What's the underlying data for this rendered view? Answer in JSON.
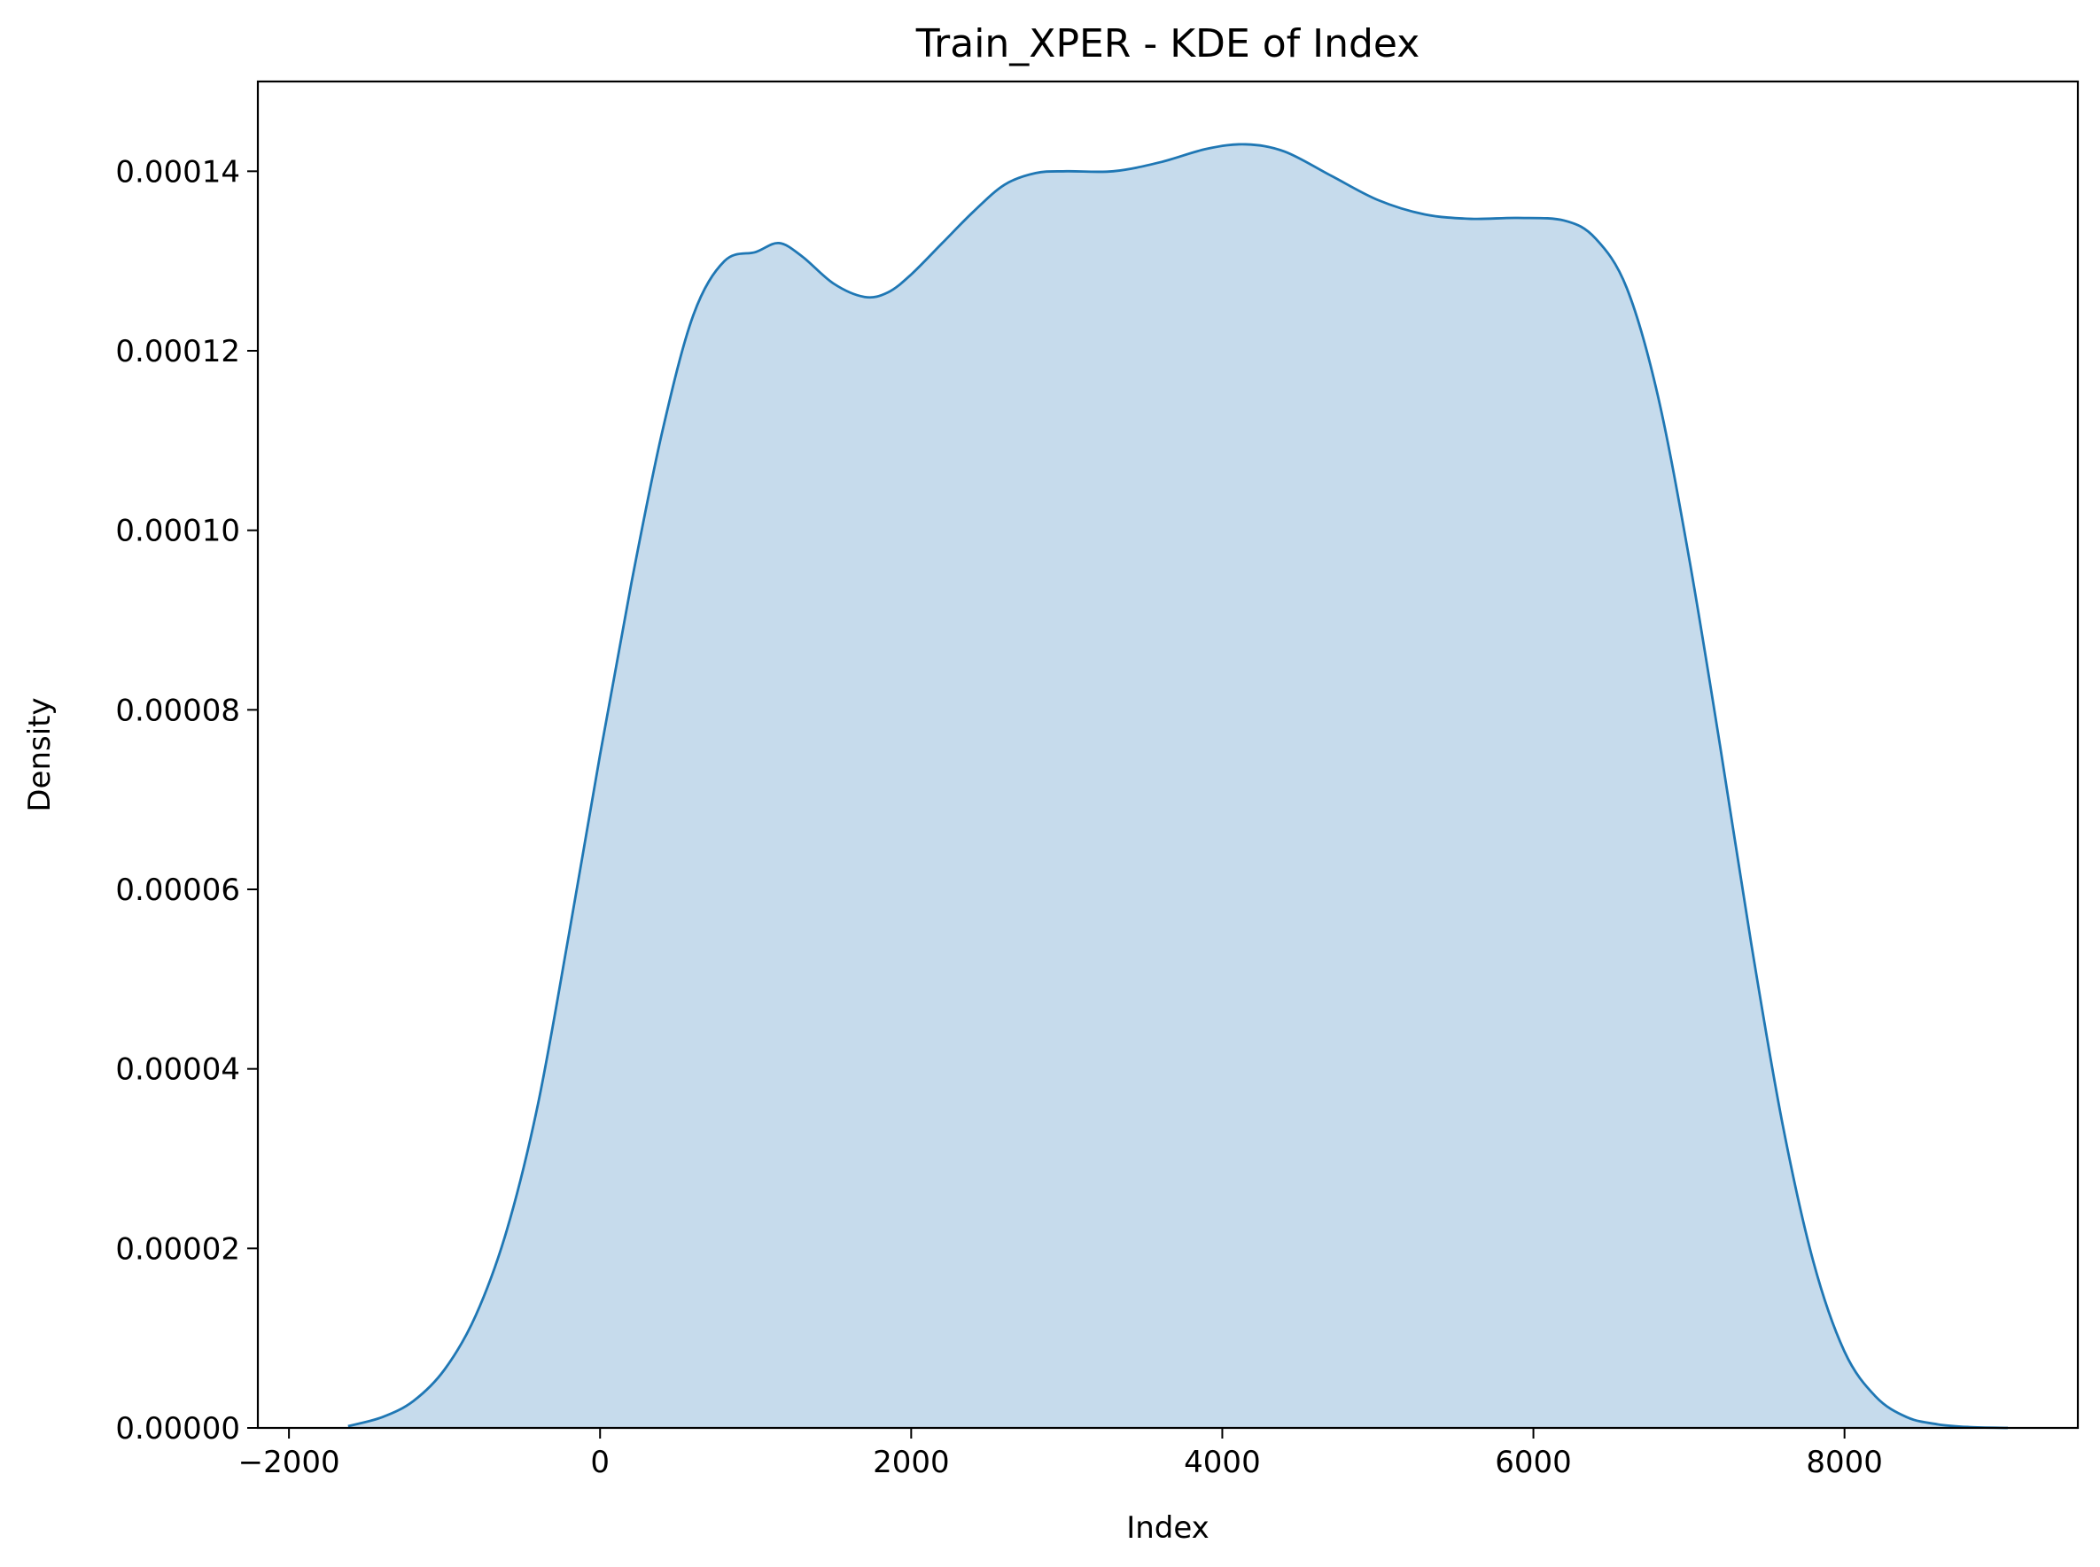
{
  "chart_data": {
    "type": "area",
    "title": "Train_XPER - KDE of Index",
    "xlabel": "Index",
    "ylabel": "Density",
    "xlim": [
      -2200,
      9500
    ],
    "ylim": [
      0,
      0.00015
    ],
    "x_ticks": [
      -2000,
      0,
      2000,
      4000,
      6000,
      8000
    ],
    "x_tick_labels": [
      "−2000",
      "0",
      "2000",
      "4000",
      "6000",
      "8000"
    ],
    "y_ticks": [
      0,
      2e-05,
      4e-05,
      6e-05,
      8e-05,
      0.0001,
      0.00012,
      0.00014
    ],
    "y_tick_labels": [
      "0.00000",
      "0.00002",
      "0.00004",
      "0.00006",
      "0.00008",
      "0.00010",
      "0.00012",
      "0.00014"
    ],
    "grid": false,
    "legend": "none",
    "colors": {
      "line": "#1f77b4",
      "fill": "#c6dbec"
    },
    "series": [
      {
        "x": [
          -1620,
          -1400,
          -1200,
          -1000,
          -800,
          -600,
          -400,
          -200,
          0,
          200,
          400,
          600,
          800,
          1000,
          1150,
          1300,
          1500,
          1700,
          1850,
          2000,
          2200,
          2400,
          2600,
          2800,
          3000,
          3300,
          3600,
          3900,
          4150,
          4400,
          4700,
          5000,
          5300,
          5600,
          5900,
          6200,
          6400,
          6600,
          6800,
          7000,
          7200,
          7400,
          7600,
          7800,
          8000,
          8200,
          8400,
          8600,
          8800,
          9050
        ],
        "y": [
          2e-07,
          1.2e-06,
          3e-06,
          6.5e-06,
          1.25e-05,
          2.2e-05,
          3.6e-05,
          5.5e-05,
          7.5e-05,
          9.4e-05,
          0.000111,
          0.000124,
          0.00013,
          0.000131,
          0.000132,
          0.0001305,
          0.0001275,
          0.000126,
          0.0001265,
          0.0001285,
          0.000132,
          0.0001355,
          0.0001385,
          0.0001398,
          0.00014,
          0.00014,
          0.000141,
          0.0001425,
          0.000143,
          0.0001422,
          0.0001395,
          0.0001368,
          0.0001352,
          0.0001347,
          0.0001348,
          0.0001345,
          0.0001325,
          0.000127,
          0.000115,
          9.7e-05,
          7.6e-05,
          5.4e-05,
          3.4e-05,
          1.85e-05,
          8.5e-06,
          3.5e-06,
          1.2e-06,
          4e-07,
          1e-07,
          0.0
        ]
      }
    ]
  }
}
